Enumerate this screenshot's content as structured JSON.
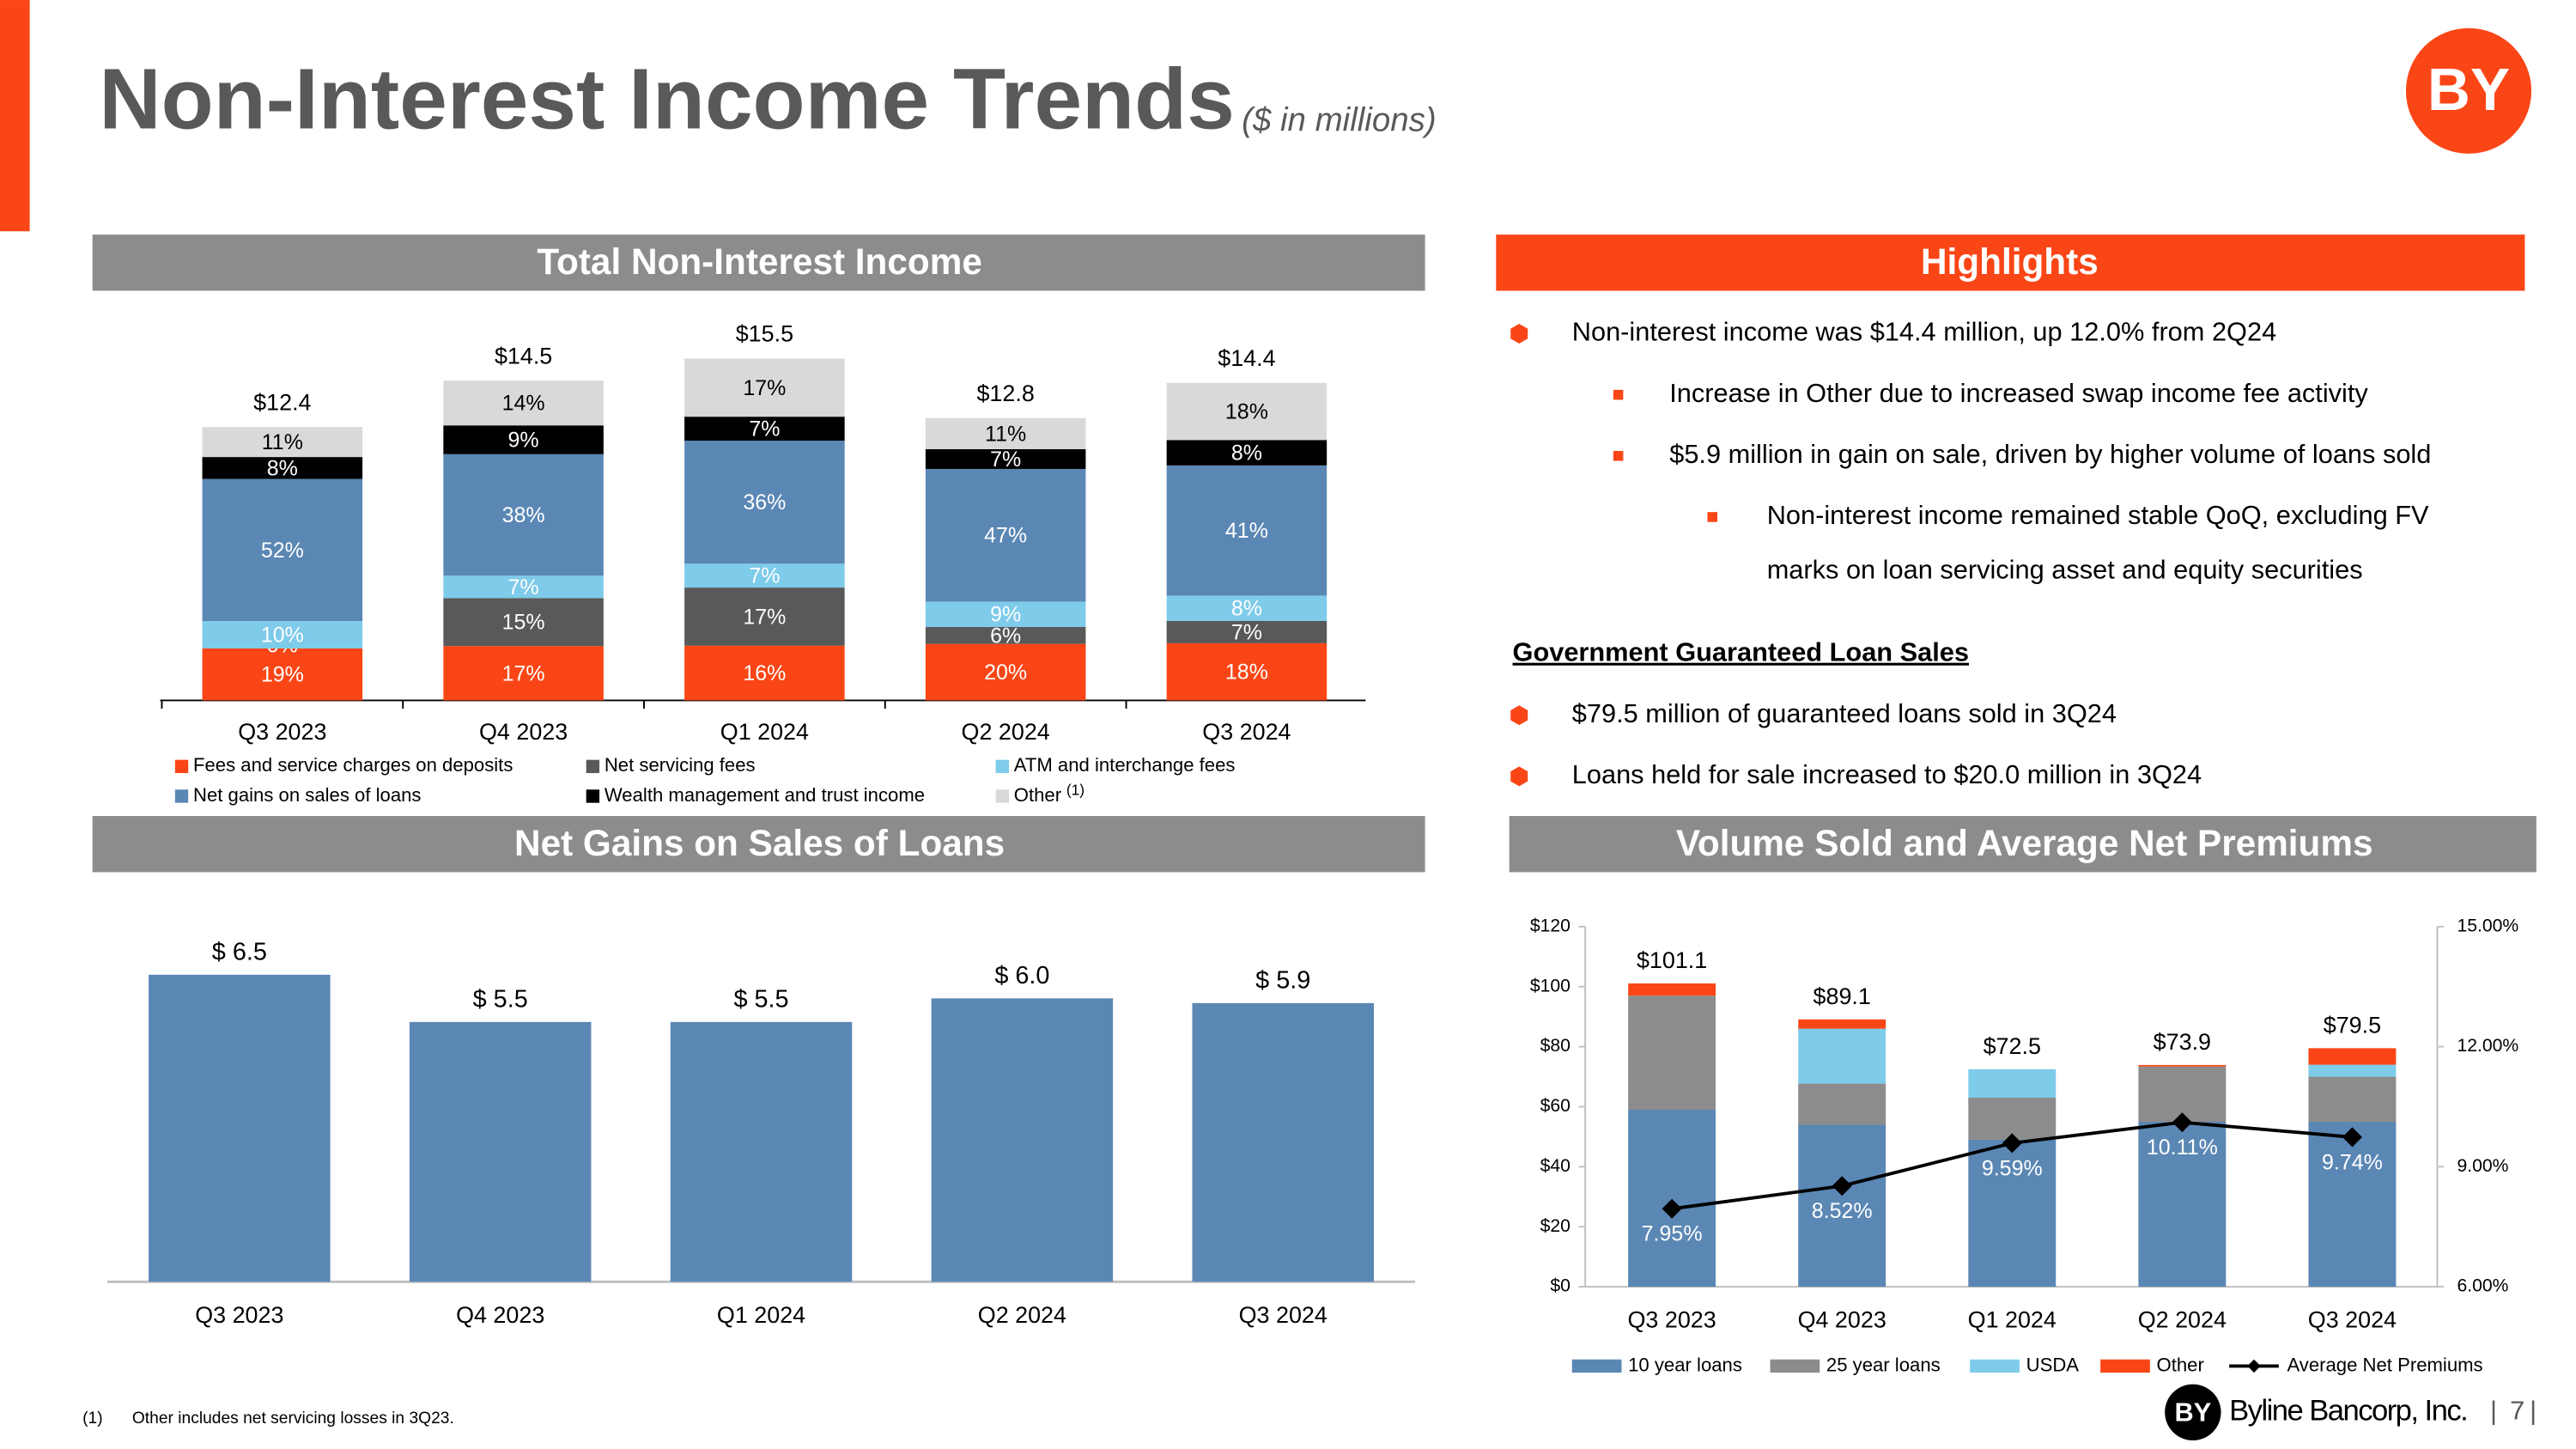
{
  "header": {
    "title": "Non-Interest Income Trends",
    "subtitle": "($ in millions)",
    "logo": "BY"
  },
  "highlights": {
    "title": "Highlights",
    "items": [
      "Non-interest income was $14.4 million, up 12.0% from 2Q24",
      "Increase in Other due to increased swap income fee activity",
      "$5.9 million in gain on sale, driven by higher volume of loans sold",
      [
        "Non-interest income remained stable QoQ, excluding FV",
        "marks on loan servicing asset and equity securities"
      ]
    ]
  },
  "gov_sales": {
    "title": "Government Guaranteed Loan Sales",
    "items": [
      "$79.5 million of guaranteed loans sold in 3Q24",
      "Loans held for sale increased to $20.0 million in 3Q24"
    ]
  },
  "footnote": {
    "marker": "(1)",
    "text": "Other includes net servicing losses in 3Q23."
  },
  "footer": {
    "company": "Byline Bancorp, Inc.",
    "separator": "|",
    "page": "7"
  },
  "chart_data": [
    {
      "type": "stacked_bar",
      "title": "Total Non-Interest Income",
      "categories": [
        "Q3 2023",
        "Q4 2023",
        "Q1 2024",
        "Q2 2024",
        "Q3 2024"
      ],
      "totals": {
        "values": [
          12.4,
          14.5,
          15.5,
          12.8,
          14.4
        ],
        "value_labels": [
          "$12.4",
          "$14.5",
          "$15.5",
          "$12.8",
          "$14.4"
        ]
      },
      "series": [
        {
          "name": "Fees and service charges on deposits",
          "color": "#fa4616",
          "label_color": "#fff",
          "values": [
            19,
            17,
            16,
            20,
            18
          ],
          "value_labels": [
            "19%",
            "17%",
            "16%",
            "20%",
            "18%"
          ]
        },
        {
          "name": "Net servicing fees",
          "color": "#595959",
          "label_color": "#fff",
          "values": [
            0,
            15,
            17,
            6,
            7
          ],
          "value_labels": [
            "0%",
            "15%",
            "17%",
            "6%",
            "7%"
          ]
        },
        {
          "name": "ATM and interchange fees",
          "color": "#7ecbea",
          "label_color": "#fff",
          "values": [
            10,
            7,
            7,
            9,
            8
          ],
          "value_labels": [
            "10%",
            "7%",
            "7%",
            "9%",
            "8%"
          ]
        },
        {
          "name": "Net gains on sales of loans",
          "color": "#5b87b4",
          "label_color": "#fff",
          "values": [
            52,
            38,
            36,
            47,
            41
          ],
          "value_labels": [
            "52%",
            "38%",
            "36%",
            "47%",
            "41%"
          ]
        },
        {
          "name": "Wealth management and trust income",
          "color": "#000000",
          "label_color": "#fff",
          "values": [
            8,
            9,
            7,
            7,
            8
          ],
          "value_labels": [
            "8%",
            "9%",
            "7%",
            "7%",
            "8%"
          ]
        },
        {
          "name": "Other",
          "note": "(1)",
          "color": "#d9d9d9",
          "label_color": "#000",
          "values": [
            11,
            14,
            17,
            11,
            18
          ],
          "value_labels": [
            "11%",
            "14%",
            "17%",
            "11%",
            "18%"
          ]
        }
      ]
    },
    {
      "type": "bar",
      "title": "Net Gains on Sales of Loans",
      "categories": [
        "Q3 2023",
        "Q4 2023",
        "Q1 2024",
        "Q2 2024",
        "Q3 2024"
      ],
      "values": [
        6.5,
        5.5,
        5.5,
        6.0,
        5.9
      ],
      "value_labels": [
        "$ 6.5",
        "$ 5.5",
        "$ 5.5",
        "$ 6.0",
        "$ 5.9"
      ],
      "color": "#5b87b4"
    },
    {
      "type": "combo",
      "title": "Volume Sold and Average Net Premiums",
      "categories": [
        "Q3 2023",
        "Q4 2023",
        "Q1 2024",
        "Q2 2024",
        "Q3 2024"
      ],
      "ylim": [
        0,
        120
      ],
      "yticks": [
        {
          "value": 0,
          "label": "$0"
        },
        {
          "value": 20,
          "label": "$20"
        },
        {
          "value": 40,
          "label": "$40"
        },
        {
          "value": 60,
          "label": "$60"
        },
        {
          "value": 80,
          "label": "$80"
        },
        {
          "value": 100,
          "label": "$100"
        },
        {
          "value": 120,
          "label": "$120"
        }
      ],
      "y2lim": [
        6,
        15
      ],
      "y2ticks": [
        {
          "value": 6,
          "label": "6.00%"
        },
        {
          "value": 9,
          "label": "9.00%"
        },
        {
          "value": 12,
          "label": "12.00%"
        },
        {
          "value": 15,
          "label": "15.00%"
        }
      ],
      "totals": {
        "values": [
          101.1,
          89.1,
          72.5,
          73.9,
          79.5
        ],
        "value_labels": [
          "$101.1",
          "$89.1",
          "$72.5",
          "$73.9",
          "$79.5"
        ]
      },
      "series": [
        {
          "name": "10 year loans",
          "color": "#5b87b4",
          "values": [
            59,
            54,
            49,
            55,
            55
          ]
        },
        {
          "name": "25 year loans",
          "color": "#8c8c8c",
          "values": [
            38,
            13.7,
            14,
            18.4,
            15
          ]
        },
        {
          "name": "USDA",
          "color": "#7ecbea",
          "values": [
            0,
            18.3,
            9.5,
            0,
            4
          ]
        },
        {
          "name": "Other",
          "color": "#fa4616",
          "values": [
            4.1,
            3.1,
            0,
            0.5,
            5.5
          ]
        },
        {
          "name": "Average Net Premiums",
          "color": "#000000",
          "axis": "y2",
          "line": true,
          "values": [
            7.95,
            8.52,
            9.59,
            10.11,
            9.74
          ],
          "value_labels": [
            "7.95%",
            "8.52%",
            "9.59%",
            "10.11%",
            "9.74%"
          ]
        }
      ]
    }
  ]
}
